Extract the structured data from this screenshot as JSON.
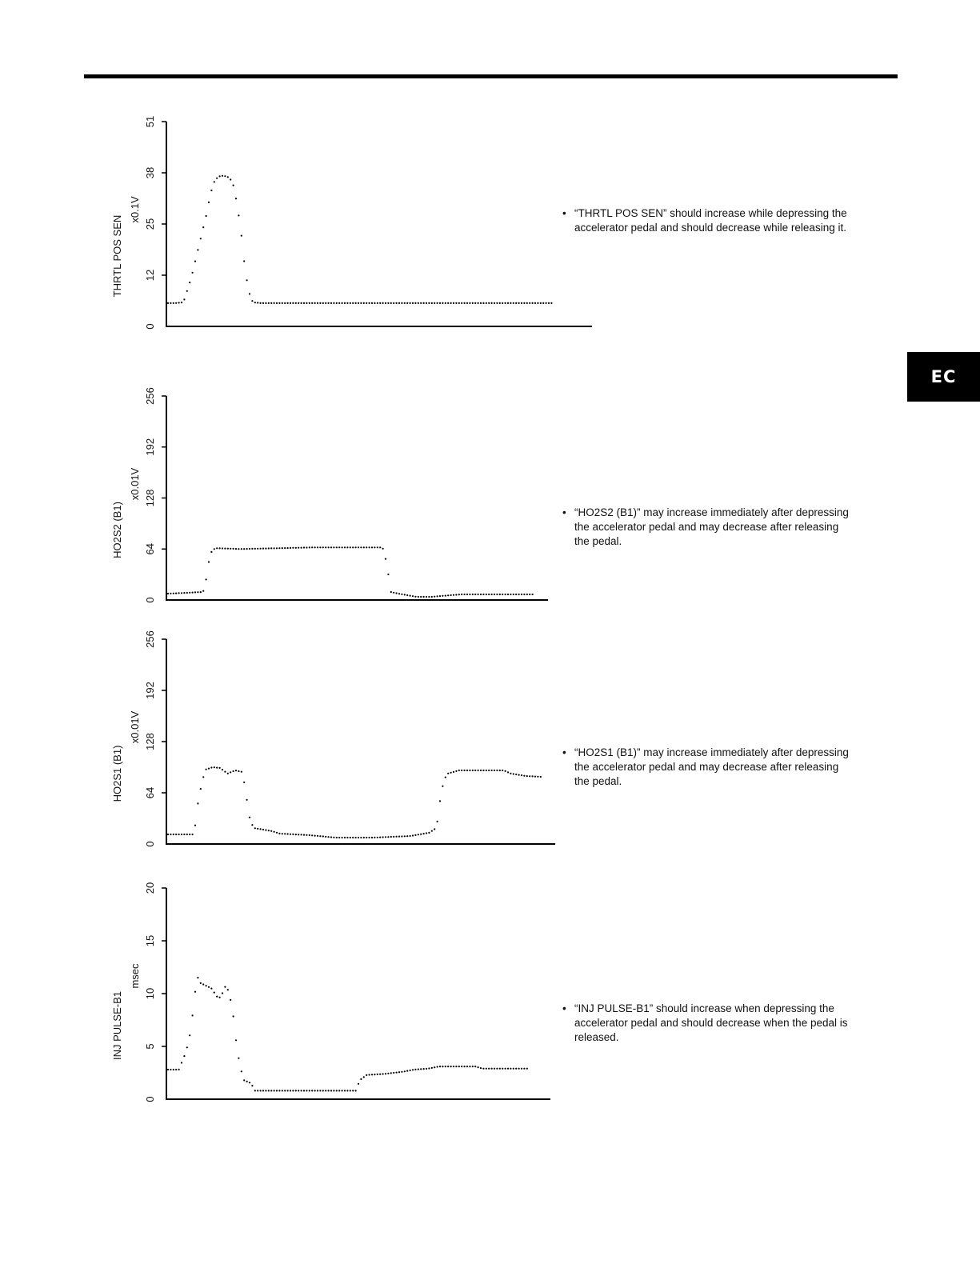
{
  "side_tab": {
    "label": "EC"
  },
  "notes": [
    {
      "bullet": "•",
      "text": "“THRTL POS SEN” should increase while depressing the accelerator pedal and should decrease while releasing it."
    },
    {
      "bullet": "•",
      "text": "“HO2S2 (B1)” may increase immediately after depressing the accelerator pedal and may decrease after releasing the pedal."
    },
    {
      "bullet": "•",
      "text": "“HO2S1 (B1)” may increase immediately after depressing the accelerator pedal and may decrease after releasing the pedal."
    },
    {
      "bullet": "•",
      "text": "“INJ PULSE-B1” should increase when depressing the accelerator pedal and should decrease when the pedal is released."
    }
  ],
  "chart_data": [
    {
      "type": "scatter",
      "ylabel": "THRTL POS SEN",
      "unit": "x0.1V",
      "yticks": [
        "0",
        "12",
        "25",
        "38",
        "51"
      ],
      "ylim": [
        0,
        51
      ],
      "points": [
        [
          0,
          5.8
        ],
        [
          2,
          5.8
        ],
        [
          4,
          6
        ],
        [
          6,
          12
        ],
        [
          8,
          20
        ],
        [
          9,
          24
        ],
        [
          10,
          28
        ],
        [
          11,
          33
        ],
        [
          12,
          36
        ],
        [
          13,
          37.3
        ],
        [
          14,
          37.5
        ],
        [
          15,
          37.4
        ],
        [
          16,
          37
        ],
        [
          17,
          35
        ],
        [
          18,
          30
        ],
        [
          19,
          23
        ],
        [
          20,
          14
        ],
        [
          21,
          8.5
        ],
        [
          22,
          6
        ],
        [
          24,
          5.8
        ],
        [
          60,
          5.8
        ],
        [
          100,
          5.8
        ]
      ]
    },
    {
      "type": "scatter",
      "ylabel": "HO2S2 (B1)",
      "unit": "x0.01V",
      "yticks": [
        "0",
        "64",
        "128",
        "192",
        "256"
      ],
      "ylim": [
        0,
        256
      ],
      "points": [
        [
          0,
          8
        ],
        [
          5,
          9
        ],
        [
          9,
          10
        ],
        [
          10,
          12
        ],
        [
          11,
          45
        ],
        [
          12,
          62
        ],
        [
          13,
          65
        ],
        [
          20,
          64
        ],
        [
          30,
          65
        ],
        [
          40,
          66
        ],
        [
          50,
          66
        ],
        [
          58,
          66
        ],
        [
          59,
          64
        ],
        [
          60,
          40
        ],
        [
          61,
          10
        ],
        [
          63,
          8
        ],
        [
          68,
          4
        ],
        [
          72,
          4
        ],
        [
          80,
          7
        ],
        [
          100,
          7
        ]
      ]
    },
    {
      "type": "scatter",
      "ylabel": "HO2S1 (B1)",
      "unit": "x0.01V",
      "yticks": [
        "0",
        "64",
        "128",
        "192",
        "256"
      ],
      "ylim": [
        0,
        256
      ],
      "points": [
        [
          0,
          12
        ],
        [
          7,
          12
        ],
        [
          8,
          50
        ],
        [
          9,
          75
        ],
        [
          10,
          93
        ],
        [
          12,
          96
        ],
        [
          14,
          95
        ],
        [
          16,
          88
        ],
        [
          18,
          92
        ],
        [
          20,
          90
        ],
        [
          21,
          60
        ],
        [
          22,
          30
        ],
        [
          23,
          20
        ],
        [
          28,
          16
        ],
        [
          30,
          13
        ],
        [
          38,
          11
        ],
        [
          45,
          8
        ],
        [
          55,
          8
        ],
        [
          65,
          10
        ],
        [
          70,
          14
        ],
        [
          72,
          20
        ],
        [
          73,
          55
        ],
        [
          74,
          80
        ],
        [
          75,
          88
        ],
        [
          78,
          92
        ],
        [
          90,
          92
        ],
        [
          92,
          88
        ],
        [
          96,
          85
        ],
        [
          100,
          84
        ]
      ]
    },
    {
      "type": "scatter",
      "ylabel": "INJ PULSE-B1",
      "unit": "msec",
      "yticks": [
        "0",
        "5",
        "10",
        "15",
        "20"
      ],
      "ylim": [
        0,
        20
      ],
      "points": [
        [
          0,
          2.8
        ],
        [
          3,
          2.8
        ],
        [
          5,
          4.5
        ],
        [
          6,
          6
        ],
        [
          7,
          8.5
        ],
        [
          8,
          11.7
        ],
        [
          9,
          11
        ],
        [
          12,
          10.5
        ],
        [
          13,
          10
        ],
        [
          14,
          9.5
        ],
        [
          15,
          10
        ],
        [
          16,
          10.8
        ],
        [
          17,
          10
        ],
        [
          18,
          8
        ],
        [
          19,
          5
        ],
        [
          20,
          3
        ],
        [
          21,
          1.8
        ],
        [
          23,
          1.5
        ],
        [
          24,
          0.8
        ],
        [
          30,
          0.8
        ],
        [
          40,
          0.8
        ],
        [
          52,
          0.8
        ],
        [
          53,
          1.8
        ],
        [
          55,
          2.3
        ],
        [
          60,
          2.4
        ],
        [
          65,
          2.6
        ],
        [
          68,
          2.8
        ],
        [
          72,
          2.9
        ],
        [
          75,
          3.1
        ],
        [
          85,
          3.1
        ],
        [
          87,
          2.9
        ],
        [
          95,
          2.9
        ]
      ]
    }
  ]
}
